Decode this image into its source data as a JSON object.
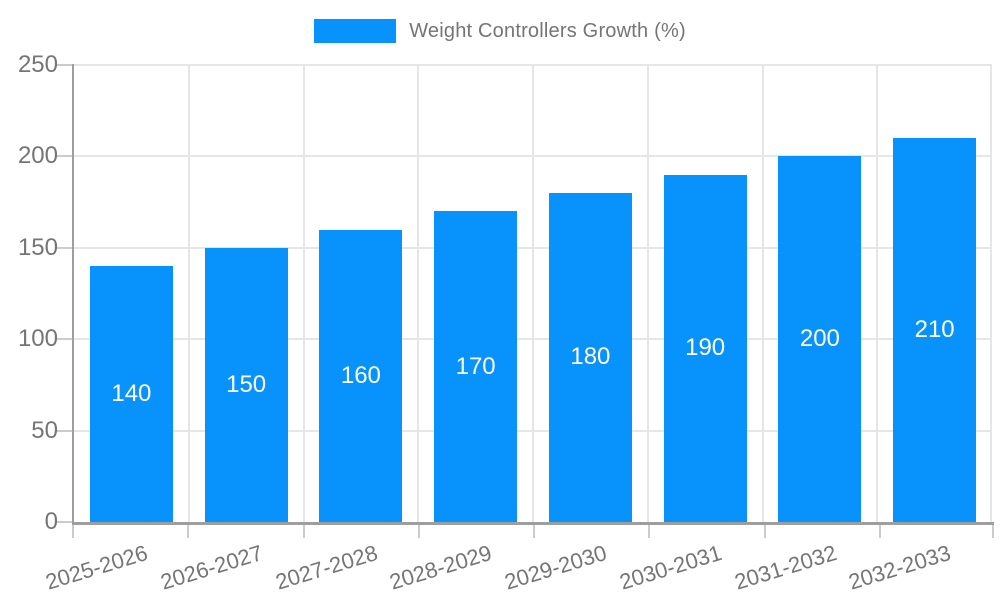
{
  "legend": {
    "label": "Weight Controllers Growth (%)"
  },
  "chart_data": {
    "type": "bar",
    "title": "Weight Controllers Growth (%)",
    "categories": [
      "2025-2026",
      "2026-2027",
      "2027-2028",
      "2028-2029",
      "2029-2030",
      "2030-2031",
      "2031-2032",
      "2032-2033"
    ],
    "values": [
      140,
      150,
      160,
      170,
      180,
      190,
      200,
      210
    ],
    "xlabel": "",
    "ylabel": "",
    "ylim": [
      0,
      250
    ],
    "yticks": [
      0,
      50,
      100,
      150,
      200,
      250
    ],
    "grid": true,
    "legend_position": "top",
    "colors": {
      "bar": "#0892fb",
      "value_label": "#ffffff",
      "axis_text": "#757575",
      "axis_line": "#9e9e9e",
      "grid_line": "#e6e6e6",
      "tick_line": "#cccccc"
    }
  }
}
